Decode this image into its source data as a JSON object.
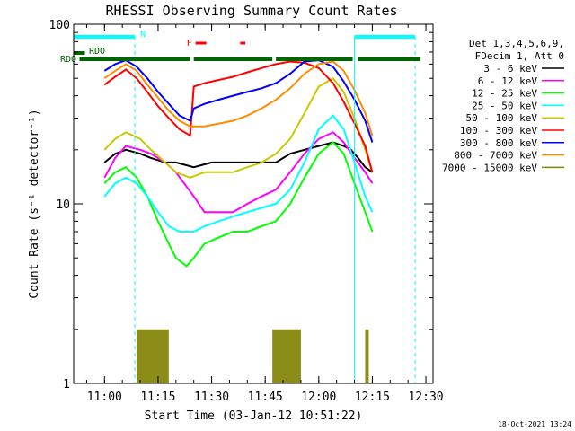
{
  "chart_data": {
    "type": "line",
    "title": "RHESSI Observing Summary Count Rates",
    "xlabel": "Start Time (03-Jan-12 10:51:22)",
    "ylabel": "Count Rate (s⁻¹ detector⁻¹)",
    "timestamp": "18-Oct-2021 13:24",
    "y_scale": "log",
    "ylim": [
      1,
      100
    ],
    "xlim": [
      "10:51:22",
      "12:32:00"
    ],
    "x_ticks": [
      "11:00",
      "11:15",
      "11:30",
      "11:45",
      "12:00",
      "12:15",
      "12:30"
    ],
    "y_ticks": [
      "1",
      "10",
      "100"
    ],
    "legend": {
      "placement": "right",
      "header": [
        "Det 1,3,4,5,6,9,",
        "FDecim 1, Att 0"
      ]
    },
    "flags": [
      {
        "label": "N",
        "color": "#00ffff"
      },
      {
        "label": "F",
        "color": "#ff0000"
      },
      {
        "label": "RDO",
        "color": "#006400"
      },
      {
        "label": "RDO",
        "color": "#006400"
      }
    ],
    "series": [
      {
        "name": "3 - 6 keV",
        "color": "#000000",
        "t": [
          "11:00",
          "11:03",
          "11:06",
          "11:10",
          "11:13",
          "11:17",
          "11:20",
          "11:25",
          "11:30",
          "11:35",
          "11:40",
          "11:45",
          "11:48",
          "11:52",
          "11:56",
          "12:00",
          "12:04",
          "12:07",
          "12:09",
          "12:11",
          "12:13",
          "12:15"
        ],
        "v": [
          17,
          19,
          20,
          19,
          18,
          17,
          17,
          16,
          17,
          17,
          17,
          17,
          17,
          19,
          20,
          21,
          22,
          21,
          20,
          18,
          16,
          15
        ]
      },
      {
        "name": "6 - 12 keV",
        "color": "#ff00ff",
        "t": [
          "11:00",
          "11:03",
          "11:06",
          "11:10",
          "11:13",
          "11:17",
          "11:20",
          "11:25",
          "11:28",
          "11:32",
          "11:36",
          "11:40",
          "11:44",
          "11:48",
          "11:52",
          "11:56",
          "12:00",
          "12:04",
          "12:07",
          "12:10",
          "12:13",
          "12:15"
        ],
        "v": [
          14,
          18,
          21,
          20,
          19,
          17,
          15,
          11,
          9,
          9,
          9,
          10,
          11,
          12,
          15,
          19,
          23,
          25,
          22,
          18,
          15,
          13
        ]
      },
      {
        "name": "12 - 25 keV",
        "color": "#00ff00",
        "t": [
          "11:00",
          "11:03",
          "11:06",
          "11:09",
          "11:12",
          "11:15",
          "11:18",
          "11:20",
          "11:23",
          "11:25",
          "11:28",
          "11:32",
          "11:36",
          "11:40",
          "11:44",
          "11:48",
          "11:52",
          "11:56",
          "12:00",
          "12:04",
          "12:07",
          "12:10",
          "12:13",
          "12:15"
        ],
        "v": [
          13,
          15,
          16,
          14,
          11,
          8,
          6,
          5,
          4.5,
          5,
          6,
          6.5,
          7,
          7,
          7.5,
          8,
          10,
          14,
          19,
          22,
          19,
          13,
          9,
          7
        ]
      },
      {
        "name": "25 - 50 keV",
        "color": "#00ffff",
        "t": [
          "11:00",
          "11:03",
          "11:06",
          "11:09",
          "11:12",
          "11:15",
          "11:18",
          "11:21",
          "11:25",
          "11:28",
          "11:32",
          "11:36",
          "11:40",
          "11:44",
          "11:48",
          "11:52",
          "11:56",
          "12:00",
          "12:04",
          "12:07",
          "12:10",
          "12:13",
          "12:15"
        ],
        "v": [
          11,
          13,
          14,
          13,
          11,
          9,
          7.5,
          7,
          7,
          7.5,
          8,
          8.5,
          9,
          9.5,
          10,
          12,
          17,
          26,
          31,
          26,
          17,
          11,
          9
        ]
      },
      {
        "name": "50 - 100 keV",
        "color": "#c8c800",
        "t": [
          "11:00",
          "11:03",
          "11:06",
          "11:10",
          "11:13",
          "11:17",
          "11:20",
          "11:24",
          "11:28",
          "11:32",
          "11:36",
          "11:40",
          "11:44",
          "11:48",
          "11:52",
          "11:56",
          "12:00",
          "12:04",
          "12:07",
          "12:10",
          "12:13",
          "12:15"
        ],
        "v": [
          20,
          23,
          25,
          23,
          20,
          17,
          15,
          14,
          15,
          15,
          15,
          16,
          17,
          19,
          23,
          32,
          45,
          50,
          42,
          30,
          20,
          15
        ]
      },
      {
        "name": "100 - 300 keV",
        "color": "#ff0000",
        "t": [
          "11:00",
          "11:03",
          "11:06",
          "11:09",
          "11:12",
          "11:15",
          "11:18",
          "11:21",
          "11:24",
          "11:25",
          "11:28",
          "11:32",
          "11:36",
          "11:40",
          "11:44",
          "11:48",
          "11:52",
          "11:56",
          "12:00",
          "12:04",
          "12:07",
          "12:10",
          "12:13",
          "12:15"
        ],
        "v": [
          46,
          51,
          56,
          50,
          42,
          35,
          30,
          26,
          24,
          45,
          47,
          49,
          51,
          54,
          57,
          60,
          62,
          61,
          57,
          47,
          37,
          28,
          21,
          15
        ]
      },
      {
        "name": "300 - 800 keV",
        "color": "#0000ff",
        "t": [
          "11:00",
          "11:03",
          "11:06",
          "11:09",
          "11:12",
          "11:15",
          "11:18",
          "11:21",
          "11:24",
          "11:25",
          "11:28",
          "11:32",
          "11:36",
          "11:40",
          "11:44",
          "11:48",
          "11:52",
          "11:56",
          "12:00",
          "12:04",
          "12:07",
          "12:10",
          "12:13",
          "12:15"
        ],
        "v": [
          55,
          60,
          63,
          58,
          50,
          42,
          36,
          31,
          29,
          34,
          36,
          38,
          40,
          42,
          44,
          47,
          53,
          62,
          63,
          58,
          48,
          38,
          29,
          22
        ]
      },
      {
        "name": "800 - 7000 keV",
        "color": "#ff8c00",
        "t": [
          "11:00",
          "11:03",
          "11:06",
          "11:09",
          "11:12",
          "11:15",
          "11:18",
          "11:21",
          "11:24",
          "11:28",
          "11:32",
          "11:36",
          "11:40",
          "11:44",
          "11:48",
          "11:52",
          "11:56",
          "12:00",
          "12:04",
          "12:07",
          "12:10",
          "12:13",
          "12:15"
        ],
        "v": [
          50,
          55,
          60,
          55,
          46,
          39,
          33,
          29,
          27,
          27,
          28,
          29,
          31,
          34,
          38,
          44,
          53,
          60,
          62,
          55,
          43,
          32,
          24
        ]
      },
      {
        "name": "7000 - 15000 keV",
        "color": "#808000",
        "t": [
          "11:09",
          "11:18",
          "11:47",
          "11:55",
          "12:13",
          "12:14"
        ],
        "v": [
          2,
          2,
          2,
          2,
          2,
          2
        ]
      }
    ]
  }
}
